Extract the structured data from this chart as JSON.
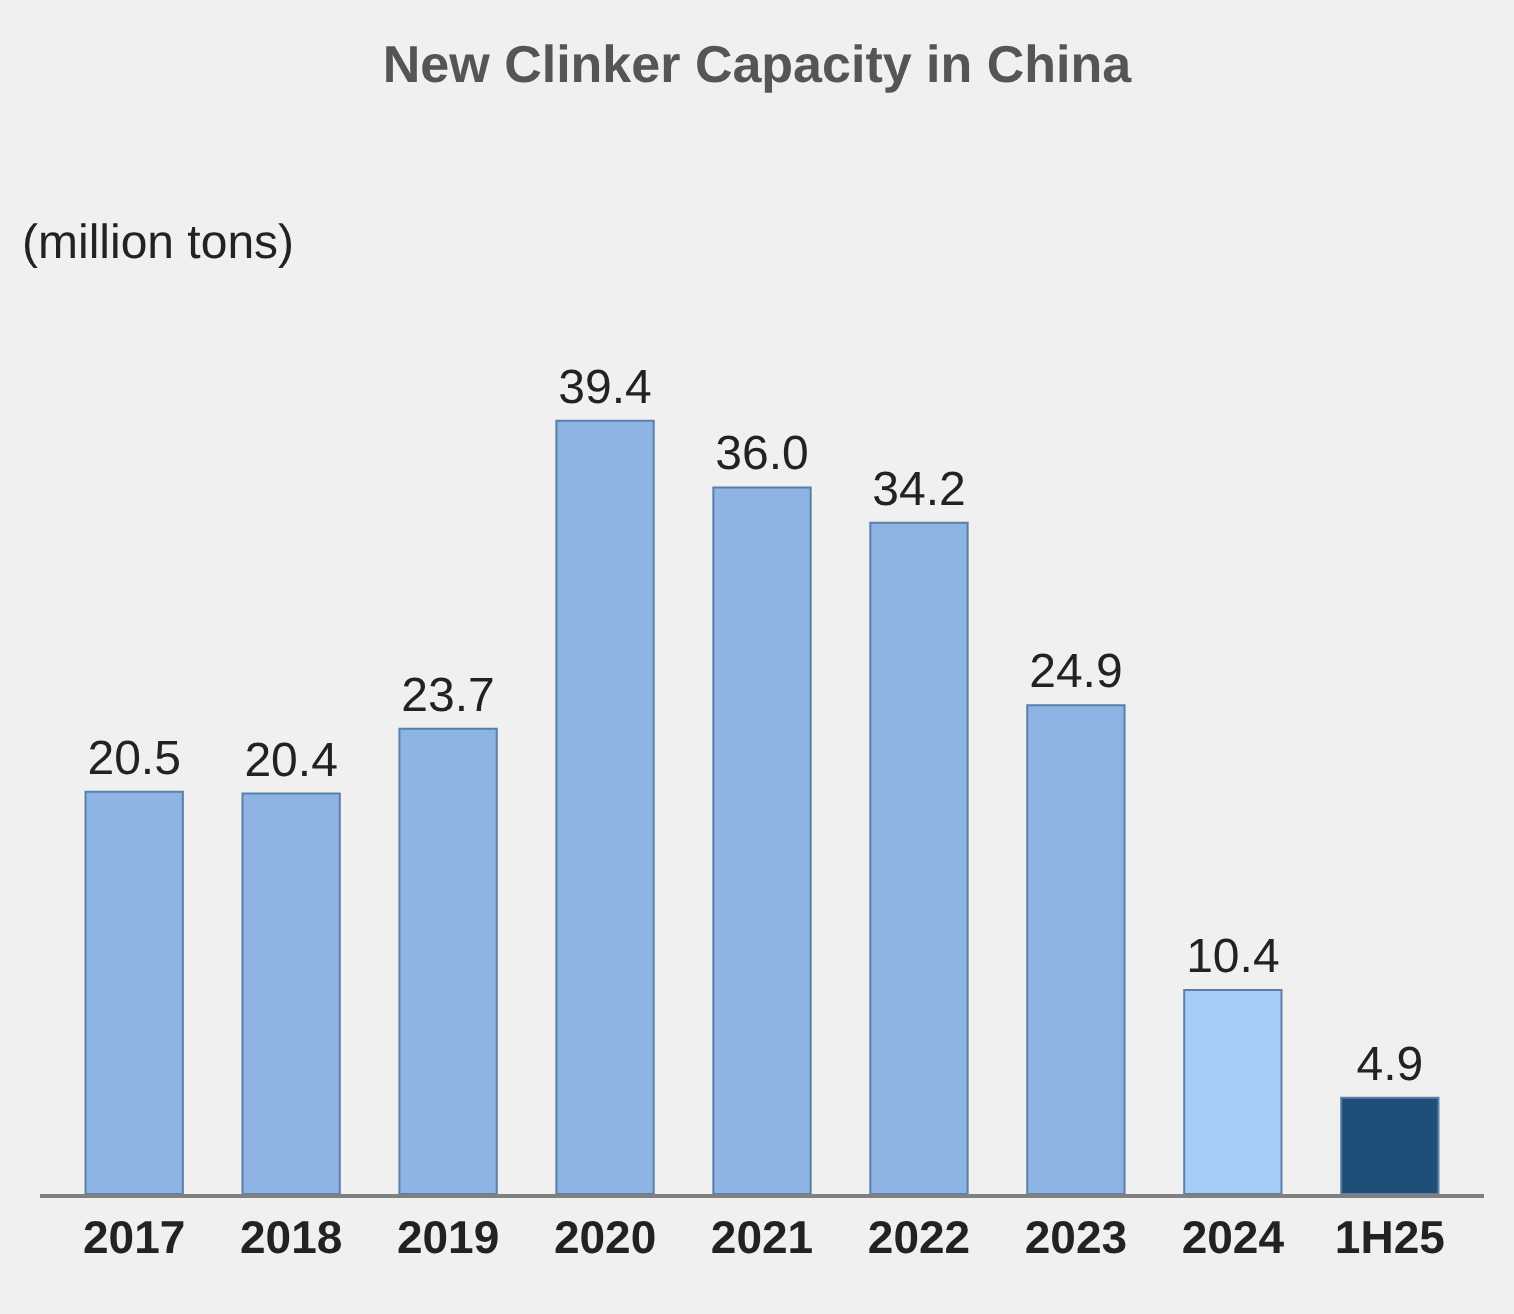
{
  "chart_data": {
    "type": "bar",
    "title": "New Clinker Capacity in China",
    "subtitle": "(million tons)",
    "categories": [
      "2017",
      "2018",
      "2019",
      "2020",
      "2021",
      "2022",
      "2023",
      "2024",
      "1H25"
    ],
    "values": [
      20.5,
      20.4,
      23.7,
      39.4,
      36.0,
      34.2,
      24.9,
      10.4,
      4.9
    ],
    "value_labels": [
      "20.5",
      "20.4",
      "23.7",
      "39.4",
      "36.0",
      "34.2",
      "24.9",
      "10.4",
      "4.9"
    ],
    "colors": [
      "#8db4e2",
      "#8db4e2",
      "#8db4e2",
      "#8db4e2",
      "#8db4e2",
      "#8db4e2",
      "#8db4e2",
      "#a6cdf5",
      "#1f4e79"
    ],
    "grid": false,
    "legend": false
  }
}
